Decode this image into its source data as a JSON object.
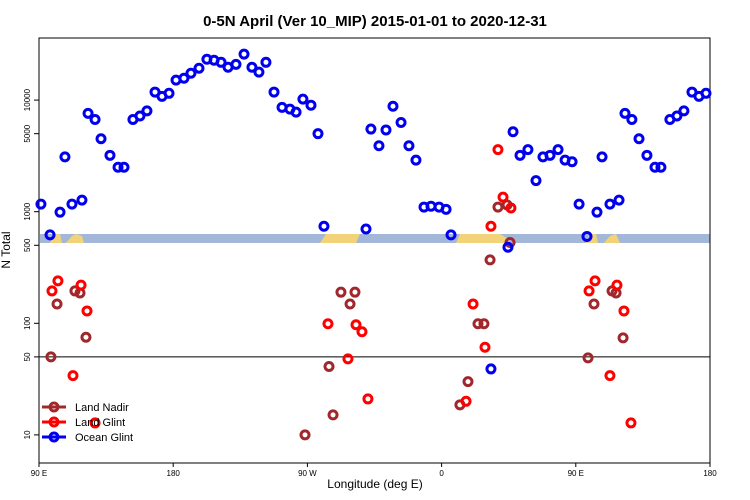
{
  "chart_data": {
    "type": "scatter",
    "title": "0-5N April (Ver 10_MIP)   2015-01-01 to 2020-12-31",
    "xlabel": "Longitude (deg E)",
    "ylabel": "N Total",
    "log_y": true,
    "legend": "lower left",
    "reference_line": 50,
    "xlim": [
      90,
      540
    ],
    "xticks": [
      {
        "value": 90,
        "label": "90 E"
      },
      180,
      {
        "value": 270,
        "label": "90 W"
      },
      {
        "value": 360,
        "label": "0"
      },
      {
        "value": 450,
        "label": "90 E"
      },
      {
        "value": 540,
        "label": "180"
      }
    ],
    "ylim": [
      5.6,
      36000
    ],
    "yticks": [
      10,
      50,
      100,
      500,
      1000,
      5000,
      10000
    ],
    "series": [
      {
        "name": "Land Nadir",
        "color": "#a0282c",
        "x": [
          98.0,
          102.1,
          114.1,
          117.5,
          121.5,
          268.4,
          284.5,
          287.2,
          292.5,
          298.6,
          301.9,
          372.3,
          377.7,
          384.4,
          388.4,
          392.5,
          397.8,
          403.9,
          405.9,
          458.2,
          462.2,
          474.3,
          477.0,
          481.7
        ],
        "values": [
          50,
          149,
          195,
          187,
          75,
          10,
          41,
          15.1,
          190,
          149,
          190,
          18.6,
          30,
          99,
          99,
          370,
          1100,
          1150,
          530,
          49,
          149,
          195,
          187,
          74
        ]
      },
      {
        "name": "Land Glint",
        "color": "#ff0000",
        "x": [
          98.7,
          102.7,
          112.8,
          118.2,
          122.2,
          127.6,
          283.8,
          297.2,
          302.6,
          306.6,
          310.6,
          376.4,
          381.1,
          389.1,
          393.1,
          397.8,
          401.2,
          406.5,
          458.9,
          462.9,
          472.9,
          477.6,
          482.3,
          487.0
        ],
        "values": [
          195,
          240,
          34,
          220,
          129,
          12.8,
          99,
          48,
          97,
          84,
          21,
          20,
          149,
          61,
          740,
          3600,
          1350,
          1080,
          195,
          240,
          34,
          220,
          129,
          12.8
        ]
      },
      {
        "name": "Ocean Glint",
        "color": "#0000ee",
        "x": [
          91.3,
          97.4,
          104.1,
          107.4,
          112.1,
          118.8,
          122.9,
          127.6,
          131.6,
          137.6,
          143.0,
          147.0,
          153.0,
          157.7,
          162.4,
          167.8,
          172.5,
          177.2,
          181.9,
          187.2,
          191.9,
          197.3,
          202.6,
          207.4,
          212.1,
          216.8,
          222.1,
          227.5,
          232.8,
          237.5,
          242.2,
          247.6,
          253.0,
          258.3,
          262.4,
          267.0,
          272.4,
          277.1,
          281.1,
          309.3,
          312.6,
          318.0,
          322.7,
          327.4,
          332.8,
          338.1,
          342.8,
          348.2,
          352.9,
          358.3,
          363.0,
          366.3,
          393.1,
          404.5,
          407.9,
          412.6,
          417.9,
          423.3,
          428.0,
          432.7,
          438.1,
          442.8,
          447.5,
          452.2,
          457.5,
          464.2,
          467.6,
          472.9,
          479.0,
          483.0,
          487.6,
          492.4,
          497.7,
          503.1,
          507.1,
          513.1,
          517.8,
          522.5,
          527.9,
          532.6,
          537.3
        ],
        "values": [
          1170,
          620,
          990,
          3100,
          1170,
          1270,
          7600,
          6700,
          4500,
          3200,
          2500,
          2500,
          6700,
          7200,
          8000,
          11800,
          10800,
          11500,
          15100,
          15700,
          17400,
          19300,
          23200,
          22750,
          21800,
          19700,
          20900,
          25800,
          19700,
          17800,
          21800,
          11800,
          8600,
          8300,
          7800,
          10200,
          9000,
          5000,
          740,
          700,
          5500,
          3900,
          5400,
          8800,
          6300,
          3900,
          2900,
          1100,
          1120,
          1100,
          1050,
          620,
          39,
          480,
          5200,
          3200,
          3600,
          1900,
          3100,
          3200,
          3600,
          2900,
          2800,
          1170,
          600,
          990,
          3100,
          1170,
          1270,
          7600,
          6700,
          4500,
          3200,
          2500,
          2500,
          6700,
          7200,
          8000,
          11800,
          10800,
          11500
        ]
      }
    ]
  }
}
